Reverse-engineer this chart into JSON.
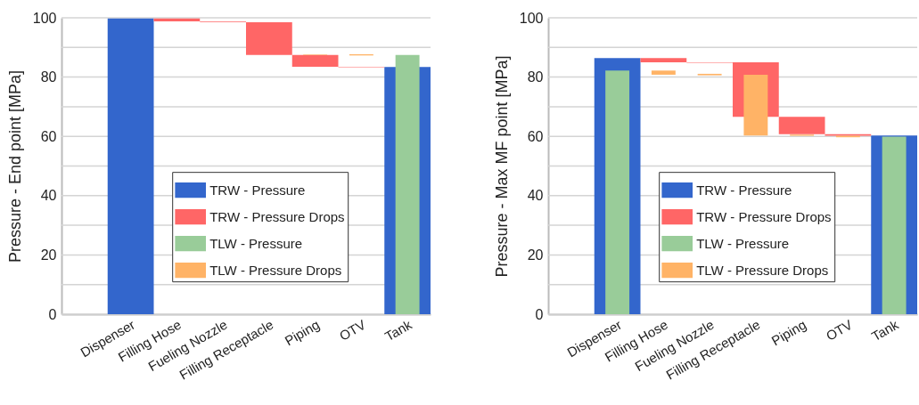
{
  "chart_data": [
    {
      "type": "bar",
      "ylabel": "Pressure - End point [MPa]",
      "categories": [
        "Dispenser",
        "Filling Hose",
        "Fueling Nozzle",
        "Filling Receptacle",
        "Piping",
        "OTV",
        "Tank"
      ],
      "ylim": [
        0,
        100
      ],
      "yticks": [
        0,
        {
          "value": 10,
          "label": null
        },
        20,
        {
          "value": 30,
          "label": null
        },
        40,
        {
          "value": 50,
          "label": null
        },
        60,
        {
          "value": 70,
          "label": null
        },
        80,
        {
          "value": 90,
          "label": null
        },
        100
      ],
      "grid": "y",
      "legend": "bottom",
      "series": [
        {
          "name": "TRW - Pressure",
          "color": "#3366cc",
          "values": [
            99.8,
            null,
            null,
            null,
            null,
            null,
            83.4
          ],
          "base": [
            0,
            null,
            null,
            null,
            null,
            null,
            0
          ]
        },
        {
          "name": "TRW - Pressure Drops",
          "color": "#ff6666",
          "values": [
            null,
            1.0,
            0.2,
            11,
            4,
            0.2,
            null
          ],
          "base": [
            null,
            98.8,
            98.6,
            87.5,
            83.5,
            83.3,
            null
          ]
        },
        {
          "name": "TLW - Pressure",
          "color": "#99cc99",
          "values": [
            null,
            null,
            null,
            null,
            null,
            null,
            87.5
          ],
          "base": [
            null,
            null,
            null,
            null,
            null,
            null,
            0
          ]
        },
        {
          "name": "TLW - Pressure Drops",
          "color": "#ffb366",
          "values": [
            null,
            null,
            null,
            null,
            0.2,
            0.4,
            null
          ],
          "base": [
            null,
            null,
            null,
            null,
            87.5,
            87.3,
            null
          ]
        }
      ]
    },
    {
      "type": "bar",
      "ylabel": "Pressure - Max MF point [MPa]",
      "categories": [
        "Dispenser",
        "Filling Hose",
        "Fueling Nozzle",
        "Filling Receptacle",
        "Piping",
        "OTV",
        "Tank"
      ],
      "ylim": [
        0,
        100
      ],
      "yticks": [
        0,
        {
          "value": 10,
          "label": null
        },
        20,
        {
          "value": 30,
          "label": null
        },
        40,
        {
          "value": 50,
          "label": null
        },
        60,
        {
          "value": 70,
          "label": null
        },
        80,
        {
          "value": 90,
          "label": null
        },
        100
      ],
      "grid": "y",
      "legend": "bottom",
      "series": [
        {
          "name": "TRW - Pressure",
          "color": "#3366cc",
          "values": [
            86.4,
            null,
            null,
            null,
            null,
            null,
            60.3
          ],
          "base": [
            0,
            null,
            null,
            null,
            null,
            null,
            0
          ]
        },
        {
          "name": "TRW - Pressure Drops",
          "color": "#ff6666",
          "values": [
            null,
            1.4,
            0.2,
            18.4,
            5.9,
            0.5,
            null
          ],
          "base": [
            null,
            85.0,
            84.8,
            66.6,
            60.7,
            60.2,
            null
          ]
        },
        {
          "name": "TLW - Pressure",
          "color": "#99cc99",
          "values": [
            82.2,
            null,
            null,
            null,
            null,
            null,
            59.9
          ],
          "base": [
            0,
            null,
            null,
            null,
            null,
            null,
            0
          ]
        },
        {
          "name": "TLW - Pressure Drops",
          "color": "#ffb366",
          "values": [
            null,
            1.4,
            0.5,
            20.5,
            0.4,
            0.5,
            null
          ],
          "base": [
            null,
            80.8,
            80.6,
            60.3,
            60.2,
            59.7,
            null
          ]
        }
      ]
    }
  ]
}
